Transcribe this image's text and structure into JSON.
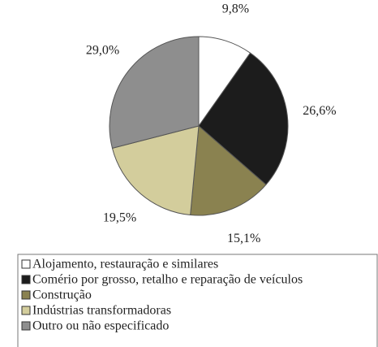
{
  "chart_data": {
    "type": "pie",
    "categories": [
      "Alojamento, restauração e similares",
      "Comério por grosso, retalho e reparação de veículos",
      "Construção",
      "Indústrias transformadoras",
      "Outro ou não especificado"
    ],
    "values": [
      9.8,
      26.6,
      15.1,
      19.5,
      29.0
    ],
    "value_labels": [
      "9,8%",
      "26,6%",
      "15,1%",
      "19,5%",
      "29,0%"
    ],
    "colors": [
      "#ffffff",
      "#1c1c1c",
      "#8a8250",
      "#d3cd9c",
      "#8e8e8e"
    ]
  }
}
